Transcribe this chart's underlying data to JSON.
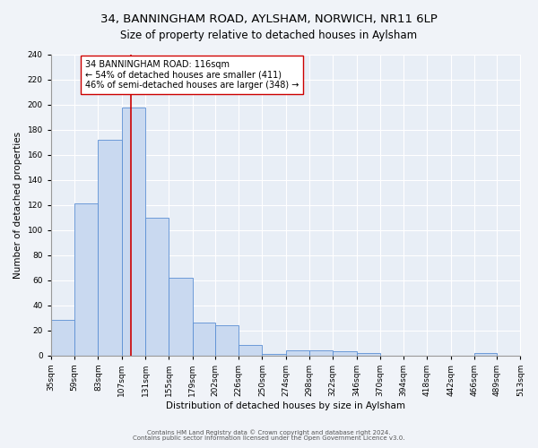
{
  "title": "34, BANNINGHAM ROAD, AYLSHAM, NORWICH, NR11 6LP",
  "subtitle": "Size of property relative to detached houses in Aylsham",
  "xlabel": "Distribution of detached houses by size in Aylsham",
  "ylabel": "Number of detached properties",
  "bin_edges": [
    35,
    59,
    83,
    107,
    131,
    155,
    179,
    202,
    226,
    250,
    274,
    298,
    322,
    346,
    370,
    394,
    418,
    442,
    466,
    489,
    513
  ],
  "bar_heights": [
    28,
    121,
    172,
    198,
    110,
    62,
    26,
    24,
    8,
    1,
    4,
    4,
    3,
    2,
    0,
    0,
    0,
    0,
    2,
    0
  ],
  "bar_facecolor": "#c9d9f0",
  "bar_edgecolor": "#5b8fd4",
  "vline_x": 116,
  "vline_color": "#cc0000",
  "annotation_text": "34 BANNINGHAM ROAD: 116sqm\n← 54% of detached houses are smaller (411)\n46% of semi-detached houses are larger (348) →",
  "annotation_box_edgecolor": "#cc0000",
  "annotation_box_facecolor": "#ffffff",
  "ylim": [
    0,
    240
  ],
  "yticks": [
    0,
    20,
    40,
    60,
    80,
    100,
    120,
    140,
    160,
    180,
    200,
    220,
    240
  ],
  "xtick_labels": [
    "35sqm",
    "59sqm",
    "83sqm",
    "107sqm",
    "131sqm",
    "155sqm",
    "179sqm",
    "202sqm",
    "226sqm",
    "250sqm",
    "274sqm",
    "298sqm",
    "322sqm",
    "346sqm",
    "370sqm",
    "394sqm",
    "418sqm",
    "442sqm",
    "466sqm",
    "489sqm",
    "513sqm"
  ],
  "footer_line1": "Contains HM Land Registry data © Crown copyright and database right 2024.",
  "footer_line2": "Contains public sector information licensed under the Open Government Licence v3.0.",
  "background_color": "#f0f3f8",
  "plot_background_color": "#e8eef6",
  "title_fontsize": 9.5,
  "subtitle_fontsize": 8.5,
  "annotation_fontsize": 7,
  "axis_label_fontsize": 7.5,
  "tick_fontsize": 6.5,
  "footer_fontsize": 5
}
